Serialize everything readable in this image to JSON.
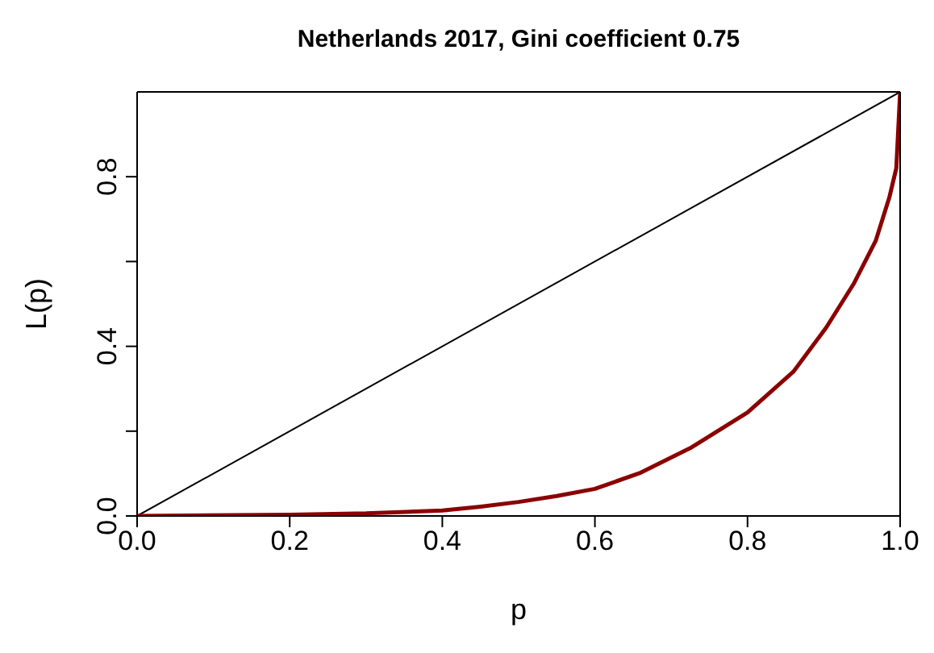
{
  "chart_data": {
    "type": "line",
    "title": "Netherlands 2017, Gini coefficient 0.75",
    "xlabel": "p",
    "ylabel": "L(p)",
    "xlim": [
      0,
      1
    ],
    "ylim": [
      0,
      1
    ],
    "xticks": [
      {
        "value": 0,
        "label": "0.0"
      },
      {
        "value": 0.2,
        "label": "0.2"
      },
      {
        "value": 0.4,
        "label": "0.4"
      },
      {
        "value": 0.6,
        "label": "0.6"
      },
      {
        "value": 0.8,
        "label": "0.8"
      },
      {
        "value": 1,
        "label": "1.0"
      }
    ],
    "yticks": [
      {
        "value": 0,
        "label": "0.0"
      },
      {
        "value": 0.2,
        "label": null
      },
      {
        "value": 0.4,
        "label": "0.4"
      },
      {
        "value": 0.6,
        "label": null
      },
      {
        "value": 0.8,
        "label": "0.8"
      }
    ],
    "marker": "none",
    "line_style": "solid",
    "series": [
      {
        "color": "#000000",
        "x": [
          0,
          1
        ],
        "values": [
          0,
          1
        ]
      },
      {
        "color": "#8b0000",
        "x": [
          0,
          0.2,
          0.3,
          0.4,
          0.45,
          0.5,
          0.55,
          0.6,
          0.66,
          0.725,
          0.8,
          0.86,
          0.903,
          0.939,
          0.968,
          0.986,
          0.995,
          1
        ],
        "values": [
          0,
          0.003,
          0.006,
          0.013,
          0.022,
          0.033,
          0.047,
          0.064,
          0.102,
          0.16,
          0.244,
          0.34,
          0.444,
          0.547,
          0.649,
          0.752,
          0.82,
          1
        ]
      }
    ]
  }
}
